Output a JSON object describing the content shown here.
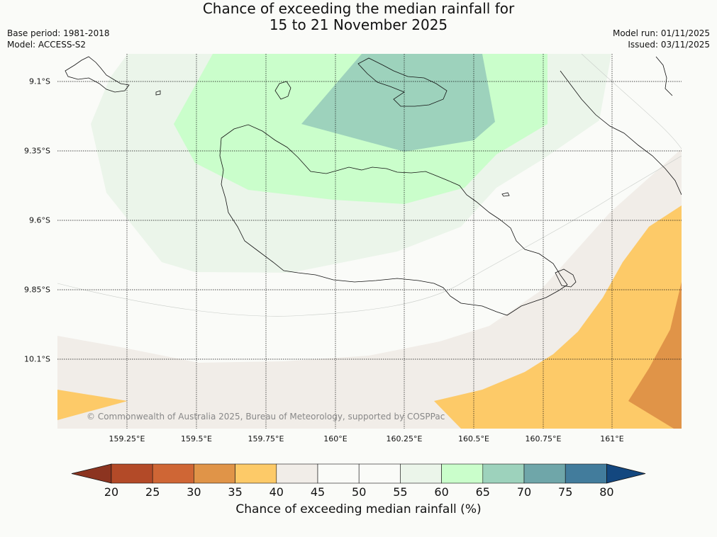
{
  "title": {
    "line1": "Chance of exceeding the median rainfall for",
    "line2": "15 to 21 November 2025"
  },
  "meta": {
    "base_period": "Base period: 1981-2018",
    "model": "Model: ACCESS-S2",
    "model_run": "Model run: 01/11/2025",
    "issued": "Issued: 03/11/2025"
  },
  "axes": {
    "lat_labels": [
      "9.1°S",
      "9.35°S",
      "9.6°S",
      "9.85°S",
      "10.1°S"
    ],
    "lon_labels": [
      "159.25°E",
      "159.5°E",
      "159.75°E",
      "160°E",
      "160.25°E",
      "160.5°E",
      "160.75°E",
      "161°E"
    ]
  },
  "copyright": "© Commonwealth of Australia 2025, Bureau of Meteorology, supported by COSPPac",
  "colorbar": {
    "ticks": [
      "20",
      "25",
      "30",
      "35",
      "40",
      "45",
      "50",
      "55",
      "60",
      "65",
      "70",
      "75",
      "80"
    ],
    "colors": [
      "#8c3420",
      "#b34a28",
      "#cf6635",
      "#e09448",
      "#fdca68",
      "#f1ede8",
      "#fafbf8",
      "#fafbf8",
      "#ebf5ea",
      "#cafecb",
      "#9dd2bc",
      "#6fa6a9",
      "#427c9c",
      "#13477f"
    ],
    "label": "Chance of exceeding median rainfall (%)"
  }
}
